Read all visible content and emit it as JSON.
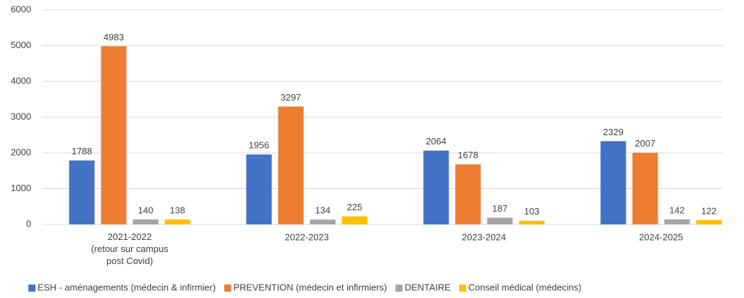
{
  "chart_data": {
    "type": "bar",
    "categories": [
      "2021-2022\n(retour sur campus\npost Covid)",
      "2022-2023",
      "2023-2024",
      "2024-2025"
    ],
    "series": [
      {
        "name": "ESH - aménagements (médecin & infirmier)",
        "color": "#4472c4",
        "values": [
          1788,
          1956,
          2064,
          2329
        ]
      },
      {
        "name": "PREVENTION (médecin et infirmiers)",
        "color": "#ed7d31",
        "values": [
          4983,
          3297,
          1678,
          2007
        ]
      },
      {
        "name": "DENTAIRE",
        "color": "#a5a5a5",
        "values": [
          140,
          134,
          187,
          142
        ]
      },
      {
        "name": "Conseil médical (médecins)",
        "color": "#ffc000",
        "values": [
          138,
          225,
          103,
          122
        ]
      }
    ],
    "ylim": [
      0,
      6000
    ],
    "yticks": [
      0,
      1000,
      2000,
      3000,
      4000,
      5000,
      6000
    ],
    "grid": true,
    "legend": "bottom"
  }
}
